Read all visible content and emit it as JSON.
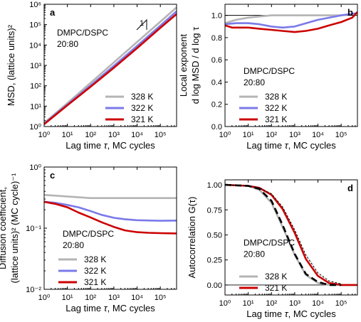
{
  "chart_data": [
    {
      "panel": "a",
      "type": "line",
      "xlabel": "Lag time τ, MC cycles",
      "ylabel": "MSD, (lattice units)²",
      "xscale": "log",
      "yscale": "log",
      "xlim": [
        1,
        500000
      ],
      "ylim": [
        1,
        1000000
      ],
      "xticks": [
        "10⁰",
        "10¹",
        "10²",
        "10³",
        "10⁴",
        "10⁵"
      ],
      "yticks": [
        "10⁰",
        "10¹",
        "10²",
        "10³",
        "10⁴",
        "10⁵",
        "10⁶"
      ],
      "annotation": "DMPC/DSPC\n20:80",
      "slope_marker": "1",
      "legend": "bottom-right",
      "series": [
        {
          "name": "328 K",
          "color": "#b4b4b4",
          "x": [
            1,
            10,
            100,
            1000,
            10000,
            100000,
            500000
          ],
          "y": [
            1.5,
            14,
            140,
            1400,
            14000,
            140000,
            700000
          ]
        },
        {
          "name": "322 K",
          "color": "#7a7aea",
          "x": [
            1,
            10,
            100,
            1000,
            10000,
            100000,
            500000
          ],
          "y": [
            1.4,
            12,
            105,
            950,
            9000,
            90000,
            450000
          ]
        },
        {
          "name": "321 K",
          "color": "#cc0000",
          "x": [
            1,
            10,
            100,
            1000,
            10000,
            100000,
            500000
          ],
          "y": [
            1.3,
            11,
            90,
            760,
            7000,
            70000,
            330000
          ]
        }
      ]
    },
    {
      "panel": "b",
      "type": "line",
      "xlabel": "Lag time τ, MC cycles",
      "ylabel": "Local exponent\nd log MSD / d log τ",
      "xscale": "log",
      "yscale": "linear",
      "xlim": [
        1,
        500000
      ],
      "ylim": [
        0,
        1.1
      ],
      "xticks": [
        "10⁰",
        "10¹",
        "10²",
        "10³",
        "10⁴",
        "10⁵"
      ],
      "yticks": [
        "0.0",
        "0.2",
        "0.4",
        "0.6",
        "0.8",
        "1.0"
      ],
      "reference_line": 1.0,
      "annotation": "DMPC/DSPC\n20:80",
      "legend": "bottom-left",
      "series": [
        {
          "name": "328 K",
          "color": "#b4b4b4",
          "x": [
            1,
            3,
            10,
            100,
            1000,
            10000,
            100000,
            500000
          ],
          "y": [
            0.93,
            0.96,
            0.98,
            1.0,
            1.0,
            1.0,
            1.0,
            1.02
          ]
        },
        {
          "name": "322 K",
          "color": "#7a7aea",
          "x": [
            1,
            3,
            10,
            30,
            100,
            300,
            1000,
            10000,
            100000,
            500000
          ],
          "y": [
            0.92,
            0.93,
            0.93,
            0.92,
            0.9,
            0.89,
            0.9,
            0.96,
            1.0,
            1.02
          ]
        },
        {
          "name": "321 K",
          "color": "#cc0000",
          "x": [
            1,
            2,
            3,
            10,
            30,
            100,
            300,
            1000,
            3000,
            10000,
            30000,
            100000,
            300000,
            500000
          ],
          "y": [
            0.91,
            0.89,
            0.89,
            0.89,
            0.88,
            0.87,
            0.86,
            0.85,
            0.86,
            0.88,
            0.91,
            0.94,
            0.98,
            1.03
          ]
        }
      ]
    },
    {
      "panel": "c",
      "type": "line",
      "xlabel": "Lag time τ, MC cycles",
      "ylabel": "Diffusion coefficient,\n(lattice units)² (MC cycle)⁻¹",
      "xscale": "log",
      "yscale": "log",
      "xlim": [
        1,
        500000
      ],
      "ylim": [
        0.01,
        1
      ],
      "xticks": [
        "10⁰",
        "10¹",
        "10²",
        "10³",
        "10⁴",
        "10⁵"
      ],
      "yticks": [
        "10⁻²",
        "10⁻¹",
        "10⁰"
      ],
      "annotation": "DMPC/DSPC\n20:80",
      "legend": "bottom-left",
      "series": [
        {
          "name": "328 K",
          "color": "#b4b4b4",
          "x": [
            1,
            10,
            100,
            1000,
            10000,
            100000,
            500000
          ],
          "y": [
            0.35,
            0.33,
            0.31,
            0.31,
            0.31,
            0.31,
            0.31
          ]
        },
        {
          "name": "322 K",
          "color": "#7a7aea",
          "x": [
            1,
            3,
            10,
            30,
            100,
            300,
            1000,
            3000,
            10000,
            100000,
            500000
          ],
          "y": [
            0.27,
            0.26,
            0.24,
            0.22,
            0.19,
            0.165,
            0.148,
            0.14,
            0.135,
            0.132,
            0.133
          ]
        },
        {
          "name": "321 K",
          "color": "#cc0000",
          "x": [
            1,
            3,
            10,
            30,
            100,
            300,
            1000,
            3000,
            10000,
            30000,
            100000,
            500000
          ],
          "y": [
            0.27,
            0.25,
            0.22,
            0.18,
            0.15,
            0.125,
            0.105,
            0.092,
            0.086,
            0.084,
            0.083,
            0.082
          ]
        }
      ]
    },
    {
      "panel": "d",
      "type": "line",
      "xlabel": "Lag time τ, MC cycles",
      "ylabel": "Autocorrelation G(τ)",
      "xscale": "log",
      "yscale": "linear",
      "xlim": [
        1,
        500000
      ],
      "ylim": [
        -0.1,
        1.05
      ],
      "xticks": [
        "10⁰",
        "10¹",
        "10²",
        "10³",
        "10⁴",
        "10⁵"
      ],
      "yticks": [
        "0.00",
        "0.25",
        "0.50",
        "0.75",
        "1.00"
      ],
      "reference_line": 0.0,
      "annotation": "DMPC/DSPC\n20:80",
      "legend": "bottom-left",
      "series": [
        {
          "name": "328 K",
          "color": "#b4b4b4",
          "x": [
            1,
            10,
            30,
            100,
            300,
            1000,
            3000,
            10000,
            30000,
            100000,
            500000
          ],
          "y": [
            1.0,
            0.99,
            0.95,
            0.82,
            0.58,
            0.3,
            0.1,
            0.02,
            0.0,
            0.0,
            0.0
          ]
        },
        {
          "name": "321 K",
          "color": "#cc0000",
          "x": [
            1,
            10,
            30,
            100,
            300,
            1000,
            3000,
            10000,
            30000,
            100000,
            500000
          ],
          "y": [
            1.0,
            0.99,
            0.97,
            0.9,
            0.76,
            0.52,
            0.26,
            0.09,
            0.02,
            0.0,
            0.0
          ]
        }
      ],
      "fits": [
        {
          "style": "dashed-thick",
          "color": "#000000",
          "x": [
            1,
            10,
            30,
            100,
            300,
            1000,
            3000,
            10000,
            30000,
            100000
          ],
          "y": [
            1.0,
            0.99,
            0.96,
            0.84,
            0.6,
            0.31,
            0.11,
            0.03,
            0.0,
            0.0
          ]
        },
        {
          "style": "dashed-thin",
          "color": "#000000",
          "x": [
            1,
            10,
            30,
            100,
            300,
            1000,
            3000,
            10000,
            30000,
            100000
          ],
          "y": [
            1.0,
            0.99,
            0.97,
            0.91,
            0.78,
            0.55,
            0.3,
            0.12,
            0.04,
            0.01
          ]
        }
      ]
    }
  ]
}
